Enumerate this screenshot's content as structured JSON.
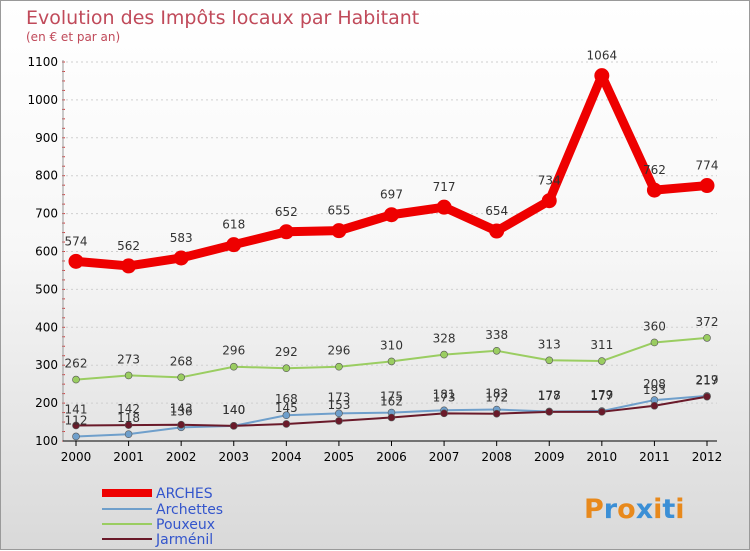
{
  "chart_data": {
    "type": "line",
    "title": "Evolution des Impôts locaux par Habitant",
    "subtitle": "(en € et par an)",
    "x": [
      "2000",
      "2001",
      "2002",
      "2003",
      "2004",
      "2005",
      "2006",
      "2007",
      "2008",
      "2009",
      "2010",
      "2011",
      "2012"
    ],
    "ylim": [
      100,
      1100
    ],
    "yticks": [
      100,
      200,
      300,
      400,
      500,
      600,
      700,
      800,
      900,
      1000,
      1100
    ],
    "grid": true,
    "series": [
      {
        "name": "ARCHES",
        "color": "#ee0000",
        "values": [
          574,
          562,
          583,
          618,
          652,
          655,
          697,
          717,
          654,
          734,
          1064,
          762,
          774
        ]
      },
      {
        "name": "Archettes",
        "color": "#6f9fcb",
        "values": [
          112,
          118,
          136,
          140,
          168,
          173,
          175,
          181,
          183,
          178,
          179,
          208,
          219
        ]
      },
      {
        "name": "Pouxeux",
        "color": "#9acd61",
        "values": [
          262,
          273,
          268,
          296,
          292,
          296,
          310,
          328,
          338,
          313,
          311,
          360,
          372
        ]
      },
      {
        "name": "Jarménil",
        "color": "#6a1a2a",
        "values": [
          141,
          142,
          143,
          140,
          145,
          153,
          162,
          173,
          172,
          177,
          177,
          193,
          217
        ]
      }
    ]
  },
  "logo": {
    "text": "Proxiti",
    "letters": [
      "P",
      "r",
      "o",
      "x",
      "i",
      "t",
      "i"
    ],
    "colors": [
      "#e8891c",
      "#3b8fd6",
      "#e8891c",
      "#3b8fd6",
      "#e8891c",
      "#3b8fd6",
      "#e8891c"
    ]
  }
}
